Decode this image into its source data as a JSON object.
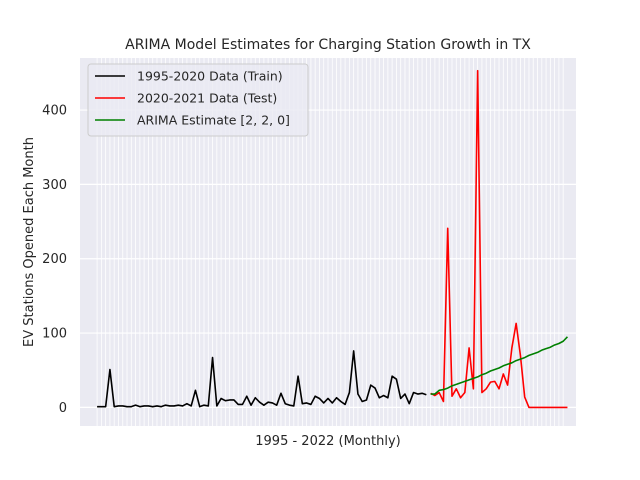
{
  "chart_data": {
    "type": "line",
    "title": "ARIMA Model Estimates for Charging Station Growth in TX",
    "xlabel": "1995 - 2022 (Monthly)",
    "ylabel": "EV Stations Opened Each Month",
    "ylim": [
      -25,
      470
    ],
    "xlim": [
      -4,
      112
    ],
    "yticks": [
      0,
      100,
      200,
      300,
      400
    ],
    "grid": true,
    "legend_position": "top-left",
    "colors": {
      "background": "#eaeaf2",
      "grid": "#ffffff",
      "text": "#262626"
    },
    "series": [
      {
        "name": "1995-2020 Data (Train)",
        "color": "#000000",
        "x": [
          0,
          1,
          2,
          3,
          4,
          5,
          6,
          7,
          8,
          9,
          10,
          11,
          12,
          13,
          14,
          15,
          16,
          17,
          18,
          19,
          20,
          21,
          22,
          23,
          24,
          25,
          26,
          27,
          28,
          29,
          30,
          31,
          32,
          33,
          34,
          35,
          36,
          37,
          38,
          39,
          40,
          41,
          42,
          43,
          44,
          45,
          46,
          47,
          48,
          49,
          50,
          51,
          52,
          53,
          54,
          55,
          56,
          57,
          58,
          59,
          60,
          61,
          62,
          63,
          64,
          65,
          66,
          67,
          68,
          69,
          70,
          71,
          72,
          73,
          74,
          75,
          76,
          77
        ],
        "values": [
          1,
          1,
          1,
          51,
          1,
          2,
          2,
          1,
          1,
          3,
          1,
          2,
          2,
          1,
          2,
          1,
          3,
          2,
          2,
          3,
          2,
          5,
          2,
          23,
          1,
          3,
          2,
          67,
          2,
          12,
          9,
          10,
          10,
          4,
          4,
          15,
          3,
          13,
          7,
          3,
          7,
          6,
          3,
          19,
          5,
          3,
          2,
          42,
          5,
          6,
          4,
          15,
          12,
          6,
          12,
          6,
          13,
          8,
          4,
          20,
          76,
          18,
          8,
          10,
          30,
          26,
          13,
          16,
          13,
          42,
          38,
          12,
          18,
          5,
          20,
          18,
          19,
          17
        ]
      },
      {
        "name": "2020-2021 Data (Test)",
        "color": "#ff0000",
        "x": [
          78,
          79,
          80,
          81,
          82,
          83,
          84,
          85,
          86,
          87,
          88,
          89,
          90,
          91,
          92,
          93,
          94,
          95,
          96,
          97,
          98,
          99,
          100,
          101,
          102,
          103,
          104,
          105,
          106,
          107,
          108,
          109,
          110
        ],
        "values": [
          19,
          16,
          20,
          8,
          241,
          15,
          25,
          13,
          20,
          80,
          25,
          453,
          20,
          25,
          34,
          35,
          25,
          45,
          30,
          80,
          113,
          70,
          14,
          0,
          0,
          0,
          0,
          0,
          0,
          0,
          0,
          0,
          0
        ]
      },
      {
        "name": "ARIMA Estimate [2, 2, 0]",
        "color": "#008000",
        "x": [
          78,
          79,
          80,
          81,
          82,
          83,
          84,
          85,
          86,
          87,
          88,
          89,
          90,
          91,
          92,
          93,
          94,
          95,
          96,
          97,
          98,
          99,
          100,
          101,
          102,
          103,
          104,
          105,
          106,
          107,
          108,
          109,
          110
        ],
        "values": [
          18,
          18,
          23,
          24,
          26,
          29,
          31,
          33,
          35,
          37,
          39,
          41,
          44,
          46,
          49,
          51,
          53,
          56,
          58,
          60,
          63,
          65,
          67,
          70,
          72,
          74,
          77,
          79,
          81,
          84,
          86,
          89,
          95
        ]
      }
    ]
  }
}
